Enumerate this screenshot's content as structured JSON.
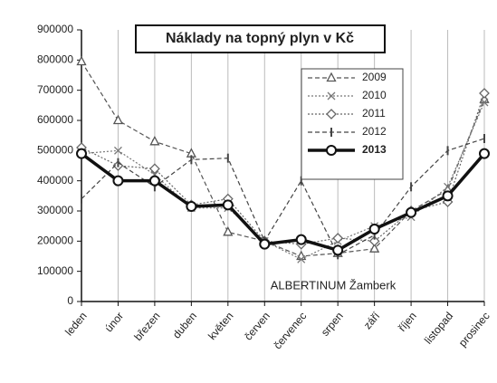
{
  "chart_data": {
    "type": "line",
    "title": "Náklady na topný plyn v Kč",
    "annotation": "ALBERTINUM Žamberk",
    "categories": [
      "leden",
      "únor",
      "březen",
      "duben",
      "květen",
      "červen",
      "červenec",
      "srpen",
      "září",
      "říjen",
      "listopad",
      "prosinec"
    ],
    "series": [
      {
        "name": "2009",
        "color": "#555",
        "marker": "triangle",
        "style": "dashed",
        "values": [
          795000,
          600000,
          530000,
          490000,
          230000,
          200000,
          150000,
          160000,
          175000,
          300000,
          370000,
          670000
        ]
      },
      {
        "name": "2010",
        "color": "#777",
        "marker": "cross",
        "style": "dotted",
        "values": [
          490000,
          500000,
          420000,
          310000,
          310000,
          200000,
          140000,
          200000,
          250000,
          280000,
          380000,
          660000
        ]
      },
      {
        "name": "2011",
        "color": "#666",
        "marker": "diamond",
        "style": "dotted",
        "values": [
          510000,
          450000,
          440000,
          320000,
          340000,
          200000,
          190000,
          210000,
          200000,
          300000,
          330000,
          690000
        ]
      },
      {
        "name": "2012",
        "color": "#444",
        "marker": "bar",
        "style": "dashed",
        "values": [
          340000,
          460000,
          380000,
          470000,
          475000,
          200000,
          400000,
          155000,
          220000,
          380000,
          500000,
          540000
        ]
      },
      {
        "name": "2013",
        "color": "#111",
        "marker": "circle",
        "style": "bold",
        "values": [
          490000,
          400000,
          400000,
          315000,
          320000,
          190000,
          205000,
          170000,
          240000,
          295000,
          350000,
          490000
        ]
      }
    ],
    "ylim": [
      0,
      900000
    ],
    "yticks": [
      0,
      100000,
      200000,
      300000,
      400000,
      500000,
      600000,
      700000,
      800000,
      900000
    ],
    "grid": "vertical"
  }
}
